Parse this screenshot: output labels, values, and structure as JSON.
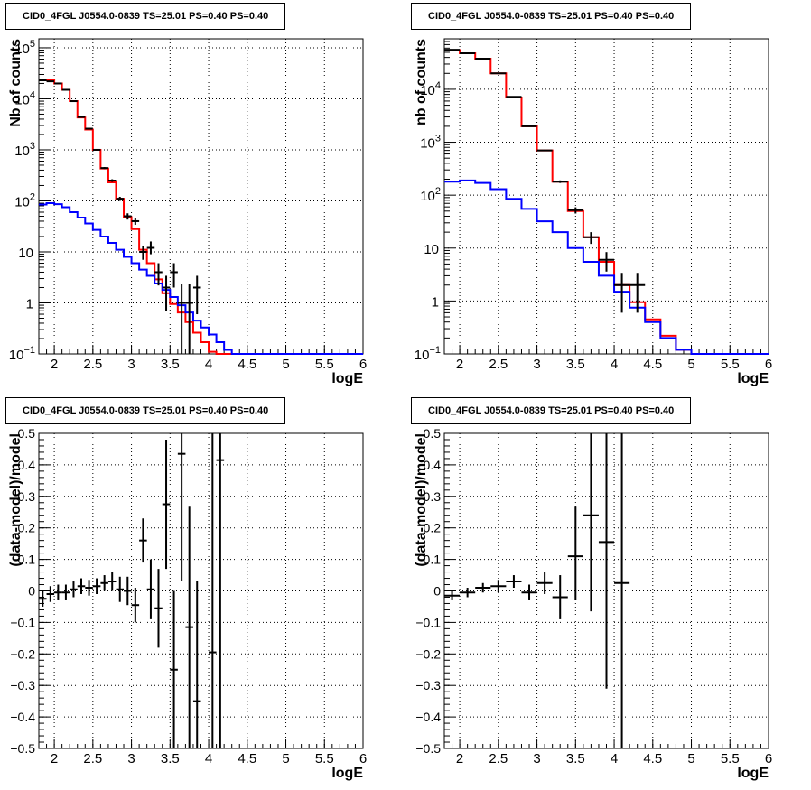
{
  "chart_data": [
    {
      "type": "line",
      "title": "CID0_4FGL J0554.0-0839 TS=25.01 PS=0.40 PS=0.40",
      "xlabel": "logE",
      "ylabel": "Nb of counts",
      "xlim": [
        1.8,
        6
      ],
      "ylim": [
        0.1,
        150000
      ],
      "yscale": "log",
      "grid": true,
      "x_ticks": [
        "2",
        "2.5",
        "3",
        "3.5",
        "4",
        "4.5",
        "5",
        "5.5",
        "6"
      ],
      "y_ticks": [
        "10^-1",
        "1",
        "10",
        "10^2",
        "10^3",
        "10^4",
        "10^5"
      ],
      "histograms": [
        {
          "color": "#ff0000",
          "edges": [
            1.8,
            1.9,
            2.0,
            2.1,
            2.2,
            2.3,
            2.4,
            2.5,
            2.6,
            2.7,
            2.8,
            2.9,
            3.0,
            3.1,
            3.2,
            3.3,
            3.4,
            3.5,
            3.6,
            3.7,
            3.8,
            3.9,
            4.0,
            4.1,
            4.2,
            4.3,
            4.4,
            4.5,
            4.6,
            4.7,
            4.8,
            4.9,
            5.0,
            5.1,
            5.2,
            5.3,
            5.4,
            5.5,
            5.6,
            5.7,
            5.8,
            5.9,
            6.0
          ],
          "values": [
            24000,
            23000,
            20000,
            15000,
            9000,
            4300,
            2500,
            1000,
            430,
            230,
            110,
            48,
            28,
            11,
            6,
            2.9,
            1.55,
            0.95,
            0.65,
            0.42,
            0.26,
            0.17,
            0.11,
            0.1,
            0.1,
            0.1,
            0.1,
            0.1,
            0.1,
            0.1,
            0.1,
            0.1,
            0.1,
            0.1,
            0.1,
            0.1,
            0.1,
            0.1,
            0.1,
            0.1,
            0.1,
            0.1
          ]
        },
        {
          "color": "#0000ff",
          "edges": [
            1.8,
            1.9,
            2.0,
            2.1,
            2.2,
            2.3,
            2.4,
            2.5,
            2.6,
            2.7,
            2.8,
            2.9,
            3.0,
            3.1,
            3.2,
            3.3,
            3.4,
            3.5,
            3.6,
            3.7,
            3.8,
            3.9,
            4.0,
            4.1,
            4.2,
            4.3,
            4.4,
            4.5,
            4.6,
            4.7,
            4.8,
            4.9,
            5.0,
            5.1,
            5.2,
            5.3,
            5.4,
            5.5,
            5.6,
            5.7,
            5.8,
            5.9,
            6.0
          ],
          "values": [
            85,
            90,
            86,
            75,
            60,
            47,
            36,
            27,
            20,
            15,
            11,
            8,
            6,
            4.5,
            3.4,
            2.4,
            1.8,
            1.3,
            0.9,
            0.65,
            0.45,
            0.33,
            0.24,
            0.17,
            0.12,
            0.1,
            0.1,
            0.1,
            0.1,
            0.1,
            0.1,
            0.1,
            0.1,
            0.1,
            0.1,
            0.1,
            0.1,
            0.1,
            0.1,
            0.1,
            0.1,
            0.1
          ]
        }
      ],
      "points": [
        {
          "x": 1.85,
          "y": 23000,
          "ylo": 22700,
          "yhi": 23300
        },
        {
          "x": 1.95,
          "y": 22000,
          "ylo": 21700,
          "yhi": 22300
        },
        {
          "x": 2.05,
          "y": 20000,
          "ylo": 19700,
          "yhi": 20300
        },
        {
          "x": 2.15,
          "y": 15000,
          "ylo": 14700,
          "yhi": 15300
        },
        {
          "x": 2.25,
          "y": 9000,
          "ylo": 8800,
          "yhi": 9200
        },
        {
          "x": 2.35,
          "y": 4400,
          "ylo": 4300,
          "yhi": 4500
        },
        {
          "x": 2.45,
          "y": 2600,
          "ylo": 2500,
          "yhi": 2700
        },
        {
          "x": 2.55,
          "y": 1000,
          "ylo": 970,
          "yhi": 1030
        },
        {
          "x": 2.65,
          "y": 440,
          "ylo": 420,
          "yhi": 460
        },
        {
          "x": 2.75,
          "y": 250,
          "ylo": 235,
          "yhi": 265
        },
        {
          "x": 2.85,
          "y": 110,
          "ylo": 100,
          "yhi": 120
        },
        {
          "x": 2.95,
          "y": 50,
          "ylo": 43,
          "yhi": 57
        },
        {
          "x": 3.05,
          "y": 40,
          "ylo": 34,
          "yhi": 46
        },
        {
          "x": 3.15,
          "y": 10,
          "ylo": 7,
          "yhi": 13
        },
        {
          "x": 3.25,
          "y": 12,
          "ylo": 9,
          "yhi": 16
        },
        {
          "x": 3.35,
          "y": 4,
          "ylo": 2.2,
          "yhi": 6
        },
        {
          "x": 3.45,
          "y": 2,
          "ylo": 0.7,
          "yhi": 3.4
        },
        {
          "x": 3.55,
          "y": 4,
          "ylo": 2,
          "yhi": 6
        },
        {
          "x": 3.65,
          "y": 1,
          "ylo": 0.1,
          "yhi": 2.3
        },
        {
          "x": 3.75,
          "y": 1,
          "ylo": 0.1,
          "yhi": 2.3
        },
        {
          "x": 3.85,
          "y": 2,
          "ylo": 0.6,
          "yhi": 3.4
        }
      ]
    },
    {
      "type": "line",
      "title": "CID0_4FGL J0554.0-0839 TS=25.01 PS=0.40 PS=0.40",
      "xlabel": "logE",
      "ylabel": "nb of counts",
      "xlim": [
        1.8,
        6
      ],
      "ylim": [
        0.1,
        90000
      ],
      "yscale": "log",
      "grid": true,
      "x_ticks": [
        "2",
        "2.5",
        "3",
        "3.5",
        "4",
        "4.5",
        "5",
        "5.5",
        "6"
      ],
      "y_ticks": [
        "10^-1",
        "1",
        "10",
        "10^2",
        "10^3",
        "10^4"
      ],
      "histograms": [
        {
          "color": "#ff0000",
          "edges": [
            1.8,
            2.0,
            2.2,
            2.4,
            2.6,
            2.8,
            3.0,
            3.2,
            3.4,
            3.6,
            3.8,
            4.0,
            4.2,
            4.4,
            4.6,
            4.8,
            5.0,
            5.2,
            5.4,
            5.6,
            5.8,
            6.0
          ],
          "values": [
            55000,
            48000,
            38000,
            20000,
            7000,
            2000,
            700,
            180,
            50,
            16,
            5.5,
            2,
            0.95,
            0.45,
            0.22,
            0.12,
            0.1,
            0.1,
            0.1,
            0.1,
            0.1
          ]
        },
        {
          "color": "#0000ff",
          "edges": [
            1.8,
            2.0,
            2.2,
            2.4,
            2.6,
            2.8,
            3.0,
            3.2,
            3.4,
            3.6,
            3.8,
            4.0,
            4.2,
            4.4,
            4.6,
            4.8,
            5.0,
            5.2,
            5.4,
            5.6,
            5.8,
            6.0
          ],
          "values": [
            180,
            190,
            170,
            130,
            85,
            55,
            32,
            20,
            10,
            5.5,
            3,
            1.5,
            0.75,
            0.4,
            0.2,
            0.12,
            0.1,
            0.1,
            0.1,
            0.1,
            0.1
          ]
        }
      ],
      "points": [
        {
          "x": 1.9,
          "y": 56000,
          "ylo": 55500,
          "yhi": 56500
        },
        {
          "x": 2.1,
          "y": 48000,
          "ylo": 47600,
          "yhi": 48400
        },
        {
          "x": 2.3,
          "y": 38000,
          "ylo": 37600,
          "yhi": 38400
        },
        {
          "x": 2.5,
          "y": 20000,
          "ylo": 19800,
          "yhi": 20200
        },
        {
          "x": 2.7,
          "y": 7200,
          "ylo": 7000,
          "yhi": 7400
        },
        {
          "x": 2.9,
          "y": 2000,
          "ylo": 1950,
          "yhi": 2050
        },
        {
          "x": 3.1,
          "y": 700,
          "ylo": 680,
          "yhi": 720
        },
        {
          "x": 3.3,
          "y": 180,
          "ylo": 170,
          "yhi": 190
        },
        {
          "x": 3.5,
          "y": 52,
          "ylo": 45,
          "yhi": 59
        },
        {
          "x": 3.7,
          "y": 16,
          "ylo": 12,
          "yhi": 20
        },
        {
          "x": 3.9,
          "y": 6,
          "ylo": 3.6,
          "yhi": 8.4
        },
        {
          "x": 4.1,
          "y": 2,
          "ylo": 0.6,
          "yhi": 3.4
        },
        {
          "x": 4.3,
          "y": 2,
          "ylo": 0.6,
          "yhi": 3.4
        }
      ]
    },
    {
      "type": "scatter",
      "title": "CID0_4FGL J0554.0-0839 TS=25.01 PS=0.40 PS=0.40",
      "xlabel": "logE",
      "ylabel": "(data-model)/model",
      "xlim": [
        1.8,
        6
      ],
      "ylim": [
        -0.5,
        0.5
      ],
      "grid": true,
      "x_ticks": [
        "2",
        "2.5",
        "3",
        "3.5",
        "4",
        "4.5",
        "5",
        "5.5",
        "6"
      ],
      "y_ticks": [
        "−0.5",
        "−0.4",
        "−0.3",
        "−0.2",
        "−0.1",
        "0",
        "0.1",
        "0.2",
        "0.3",
        "0.4",
        "0.5"
      ],
      "points": [
        {
          "x": 1.85,
          "y": -0.025,
          "ylo": -0.05,
          "yhi": 0.0
        },
        {
          "x": 1.95,
          "y": -0.01,
          "ylo": -0.035,
          "yhi": 0.015
        },
        {
          "x": 2.05,
          "y": -0.005,
          "ylo": -0.03,
          "yhi": 0.02
        },
        {
          "x": 2.15,
          "y": -0.005,
          "ylo": -0.03,
          "yhi": 0.02
        },
        {
          "x": 2.25,
          "y": 0.005,
          "ylo": -0.02,
          "yhi": 0.03
        },
        {
          "x": 2.35,
          "y": 0.015,
          "ylo": -0.01,
          "yhi": 0.04
        },
        {
          "x": 2.45,
          "y": 0.01,
          "ylo": -0.015,
          "yhi": 0.035
        },
        {
          "x": 2.55,
          "y": 0.015,
          "ylo": -0.01,
          "yhi": 0.04
        },
        {
          "x": 2.65,
          "y": 0.025,
          "ylo": 0.0,
          "yhi": 0.05
        },
        {
          "x": 2.75,
          "y": 0.03,
          "ylo": 0.0,
          "yhi": 0.06
        },
        {
          "x": 2.85,
          "y": 0.005,
          "ylo": -0.035,
          "yhi": 0.045
        },
        {
          "x": 2.95,
          "y": 0.0,
          "ylo": -0.045,
          "yhi": 0.045
        },
        {
          "x": 3.05,
          "y": -0.045,
          "ylo": -0.1,
          "yhi": 0.01
        },
        {
          "x": 3.15,
          "y": 0.16,
          "ylo": 0.09,
          "yhi": 0.23
        },
        {
          "x": 3.25,
          "y": 0.005,
          "ylo": -0.09,
          "yhi": 0.1
        },
        {
          "x": 3.35,
          "y": -0.055,
          "ylo": -0.18,
          "yhi": 0.07
        },
        {
          "x": 3.45,
          "y": 0.275,
          "ylo": 0.07,
          "yhi": 0.48
        },
        {
          "x": 3.55,
          "y": -0.25,
          "ylo": -0.5,
          "yhi": 0.0
        },
        {
          "x": 3.65,
          "y": 0.435,
          "ylo": 0.03,
          "yhi": 0.5
        },
        {
          "x": 3.75,
          "y": -0.115,
          "ylo": -0.5,
          "yhi": 0.27
        },
        {
          "x": 3.85,
          "y": -0.35,
          "ylo": -0.5,
          "yhi": 0.03
        },
        {
          "x": 4.05,
          "y": -0.195,
          "ylo": -0.5,
          "yhi": 0.5
        },
        {
          "x": 4.15,
          "y": 0.415,
          "ylo": -0.5,
          "yhi": 0.5
        }
      ]
    },
    {
      "type": "scatter",
      "title": "CID0_4FGL J0554.0-0839 TS=25.01 PS=0.40 PS=0.40",
      "xlabel": "logE",
      "ylabel": "(data-model)/model",
      "xlim": [
        1.8,
        6
      ],
      "ylim": [
        -0.5,
        0.5
      ],
      "grid": true,
      "x_ticks": [
        "2",
        "2.5",
        "3",
        "3.5",
        "4",
        "4.5",
        "5",
        "5.5",
        "6"
      ],
      "y_ticks": [
        "−0.5",
        "−0.4",
        "−0.3",
        "−0.2",
        "−0.1",
        "0",
        "0.1",
        "0.2",
        "0.3",
        "0.4",
        "0.5"
      ],
      "points": [
        {
          "x": 1.9,
          "y": -0.015,
          "ylo": -0.03,
          "yhi": 0.0
        },
        {
          "x": 2.1,
          "y": -0.005,
          "ylo": -0.02,
          "yhi": 0.01
        },
        {
          "x": 2.3,
          "y": 0.01,
          "ylo": -0.005,
          "yhi": 0.025
        },
        {
          "x": 2.5,
          "y": 0.015,
          "ylo": -0.005,
          "yhi": 0.035
        },
        {
          "x": 2.7,
          "y": 0.03,
          "ylo": 0.01,
          "yhi": 0.05
        },
        {
          "x": 2.9,
          "y": -0.005,
          "ylo": -0.03,
          "yhi": 0.02
        },
        {
          "x": 3.1,
          "y": 0.025,
          "ylo": -0.01,
          "yhi": 0.06
        },
        {
          "x": 3.3,
          "y": -0.02,
          "ylo": -0.09,
          "yhi": 0.05
        },
        {
          "x": 3.5,
          "y": 0.11,
          "ylo": -0.03,
          "yhi": 0.27
        },
        {
          "x": 3.7,
          "y": 0.24,
          "ylo": -0.065,
          "yhi": 0.5
        },
        {
          "x": 3.9,
          "y": 0.155,
          "ylo": -0.31,
          "yhi": 0.5
        },
        {
          "x": 4.1,
          "y": 0.025,
          "ylo": -0.5,
          "yhi": 0.5
        }
      ]
    }
  ]
}
